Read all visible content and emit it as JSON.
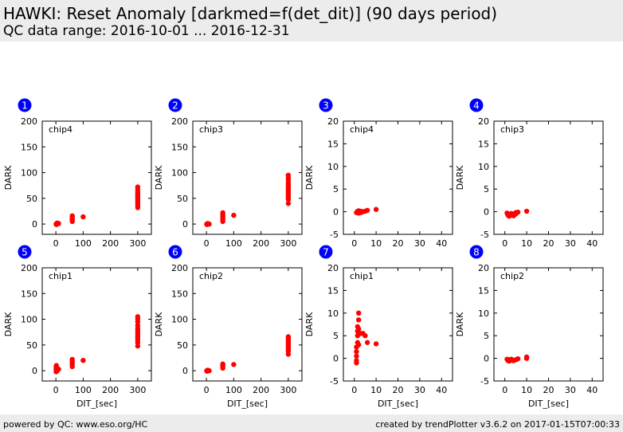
{
  "header": {
    "title": "HAWKI: Reset Anomaly [darkmed=f(det_dit)] (90 days period)",
    "subtitle": "QC data range: 2016-10-01 ... 2016-12-31"
  },
  "footer": {
    "left": "powered by QC: www.eso.org/HC",
    "right": "created by trendPlotter v3.6.2 on 2017-01-15T07:00:33"
  },
  "colors": {
    "points": "#ff0000",
    "badge": "#0000ff",
    "header_bg": "#ececec"
  },
  "chart_data": [
    {
      "type": "scatter",
      "index": "1",
      "label": "chip4",
      "xlabel": "",
      "ylabel": "DARK",
      "xlim": [
        -50,
        350
      ],
      "ylim": [
        -20,
        200
      ],
      "xticks": [
        0,
        100,
        200,
        300
      ],
      "yticks": [
        0,
        50,
        100,
        150,
        200
      ],
      "series": [
        {
          "points": [
            [
              1,
              0
            ],
            [
              2,
              -1
            ],
            [
              3,
              1
            ],
            [
              5,
              2
            ],
            [
              10,
              1
            ],
            [
              60,
              5
            ],
            [
              60,
              8
            ],
            [
              60,
              10
            ],
            [
              60,
              12
            ],
            [
              60,
              14
            ],
            [
              60,
              16
            ],
            [
              100,
              14
            ],
            [
              300,
              32
            ],
            [
              300,
              36
            ],
            [
              300,
              40
            ],
            [
              300,
              43
            ],
            [
              300,
              46
            ],
            [
              300,
              49
            ],
            [
              300,
              52
            ],
            [
              300,
              55
            ],
            [
              300,
              58
            ],
            [
              300,
              62
            ],
            [
              300,
              67
            ],
            [
              300,
              72
            ]
          ]
        }
      ]
    },
    {
      "type": "scatter",
      "index": "2",
      "label": "chip3",
      "xlabel": "",
      "ylabel": "DARK",
      "xlim": [
        -50,
        350
      ],
      "ylim": [
        -20,
        200
      ],
      "xticks": [
        0,
        100,
        200,
        300
      ],
      "yticks": [
        0,
        50,
        100,
        150,
        200
      ],
      "series": [
        {
          "points": [
            [
              1,
              0
            ],
            [
              2,
              -1
            ],
            [
              3,
              0
            ],
            [
              5,
              1
            ],
            [
              10,
              0
            ],
            [
              60,
              5
            ],
            [
              60,
              9
            ],
            [
              60,
              12
            ],
            [
              60,
              15
            ],
            [
              60,
              18
            ],
            [
              60,
              22
            ],
            [
              100,
              17
            ],
            [
              300,
              40
            ],
            [
              300,
              48
            ],
            [
              300,
              52
            ],
            [
              300,
              55
            ],
            [
              300,
              58
            ],
            [
              300,
              62
            ],
            [
              300,
              65
            ],
            [
              300,
              68
            ],
            [
              300,
              72
            ],
            [
              300,
              76
            ],
            [
              300,
              80
            ],
            [
              300,
              86
            ],
            [
              300,
              91
            ],
            [
              300,
              95
            ]
          ]
        }
      ]
    },
    {
      "type": "scatter",
      "index": "3",
      "label": "chip4",
      "xlabel": "",
      "ylabel": "DARK",
      "xlim": [
        -5,
        45
      ],
      "ylim": [
        -5,
        20
      ],
      "xticks": [
        0,
        10,
        20,
        30,
        40
      ],
      "yticks": [
        -5,
        0,
        5,
        10,
        15,
        20
      ],
      "series": [
        {
          "points": [
            [
              1,
              -0.2
            ],
            [
              1.5,
              0.1
            ],
            [
              2,
              -0.3
            ],
            [
              2,
              0.2
            ],
            [
              2.5,
              -0.1
            ],
            [
              3,
              0.1
            ],
            [
              3,
              -0.2
            ],
            [
              4,
              0
            ],
            [
              5,
              0.1
            ],
            [
              6,
              0.3
            ],
            [
              10,
              0.5
            ]
          ]
        }
      ]
    },
    {
      "type": "scatter",
      "index": "4",
      "label": "chip3",
      "xlabel": "",
      "ylabel": "DARK",
      "xlim": [
        -5,
        45
      ],
      "ylim": [
        -5,
        20
      ],
      "xticks": [
        0,
        10,
        20,
        30,
        40
      ],
      "yticks": [
        -5,
        0,
        5,
        10,
        15,
        20
      ],
      "series": [
        {
          "points": [
            [
              1,
              -0.3
            ],
            [
              1.5,
              -0.8
            ],
            [
              2,
              -0.6
            ],
            [
              2,
              -1
            ],
            [
              3,
              -0.7
            ],
            [
              3,
              -0.4
            ],
            [
              4,
              -0.9
            ],
            [
              5,
              -0.5
            ],
            [
              5,
              -0.2
            ],
            [
              6,
              -0.1
            ],
            [
              10,
              0.1
            ]
          ]
        }
      ]
    },
    {
      "type": "scatter",
      "index": "5",
      "label": "chip1",
      "xlabel": "DIT_[sec]",
      "ylabel": "DARK",
      "xlim": [
        -50,
        350
      ],
      "ylim": [
        -20,
        200
      ],
      "xticks": [
        0,
        100,
        200,
        300
      ],
      "yticks": [
        0,
        50,
        100,
        150,
        200
      ],
      "series": [
        {
          "points": [
            [
              1,
              -2
            ],
            [
              1,
              2
            ],
            [
              1,
              5
            ],
            [
              1,
              8
            ],
            [
              2,
              10
            ],
            [
              5,
              0
            ],
            [
              10,
              3
            ],
            [
              60,
              8
            ],
            [
              60,
              12
            ],
            [
              60,
              15
            ],
            [
              60,
              18
            ],
            [
              60,
              22
            ],
            [
              100,
              20
            ],
            [
              300,
              48
            ],
            [
              300,
              55
            ],
            [
              300,
              60
            ],
            [
              300,
              63
            ],
            [
              300,
              66
            ],
            [
              300,
              70
            ],
            [
              300,
              74
            ],
            [
              300,
              78
            ],
            [
              300,
              82
            ],
            [
              300,
              88
            ],
            [
              300,
              95
            ],
            [
              300,
              100
            ],
            [
              300,
              105
            ]
          ]
        }
      ]
    },
    {
      "type": "scatter",
      "index": "6",
      "label": "chip2",
      "xlabel": "DIT_[sec]",
      "ylabel": "DARK",
      "xlim": [
        -50,
        350
      ],
      "ylim": [
        -20,
        200
      ],
      "xticks": [
        0,
        100,
        200,
        300
      ],
      "yticks": [
        0,
        50,
        100,
        150,
        200
      ],
      "series": [
        {
          "points": [
            [
              1,
              0
            ],
            [
              2,
              -1
            ],
            [
              3,
              0
            ],
            [
              5,
              1
            ],
            [
              10,
              0
            ],
            [
              60,
              5
            ],
            [
              60,
              8
            ],
            [
              60,
              10
            ],
            [
              60,
              13
            ],
            [
              100,
              12
            ],
            [
              300,
              32
            ],
            [
              300,
              38
            ],
            [
              300,
              42
            ],
            [
              300,
              45
            ],
            [
              300,
              48
            ],
            [
              300,
              52
            ],
            [
              300,
              55
            ],
            [
              300,
              58
            ],
            [
              300,
              62
            ],
            [
              300,
              66
            ]
          ]
        }
      ]
    },
    {
      "type": "scatter",
      "index": "7",
      "label": "chip1",
      "xlabel": "DIT_[sec]",
      "ylabel": "DARK",
      "xlim": [
        -5,
        45
      ],
      "ylim": [
        -5,
        20
      ],
      "xticks": [
        0,
        10,
        20,
        30,
        40
      ],
      "yticks": [
        -5,
        0,
        5,
        10,
        15,
        20
      ],
      "series": [
        {
          "points": [
            [
              1,
              -1
            ],
            [
              1,
              -0.5
            ],
            [
              1,
              0.5
            ],
            [
              1,
              1.5
            ],
            [
              1,
              2.5
            ],
            [
              1.5,
              3.5
            ],
            [
              1.5,
              5
            ],
            [
              1.5,
              6
            ],
            [
              1.5,
              7
            ],
            [
              2,
              8.5
            ],
            [
              2,
              10
            ],
            [
              2,
              6.5
            ],
            [
              2,
              3
            ],
            [
              2,
              5.5
            ],
            [
              3,
              5.5
            ],
            [
              4,
              5.5
            ],
            [
              5,
              5
            ],
            [
              6,
              3.5
            ],
            [
              10,
              3.2
            ]
          ]
        }
      ]
    },
    {
      "type": "scatter",
      "index": "8",
      "label": "chip2",
      "xlabel": "DIT_[sec]",
      "ylabel": "DARK",
      "xlim": [
        -5,
        45
      ],
      "ylim": [
        -5,
        20
      ],
      "xticks": [
        0,
        10,
        20,
        30,
        40
      ],
      "yticks": [
        -5,
        0,
        5,
        10,
        15,
        20
      ],
      "series": [
        {
          "points": [
            [
              1,
              -0.2
            ],
            [
              1.5,
              -0.5
            ],
            [
              2,
              -0.3
            ],
            [
              2,
              -0.6
            ],
            [
              3,
              -0.4
            ],
            [
              3,
              -0.2
            ],
            [
              4,
              -0.5
            ],
            [
              5,
              -0.3
            ],
            [
              6,
              -0.1
            ],
            [
              10,
              0
            ],
            [
              10,
              0.3
            ]
          ]
        }
      ]
    }
  ]
}
